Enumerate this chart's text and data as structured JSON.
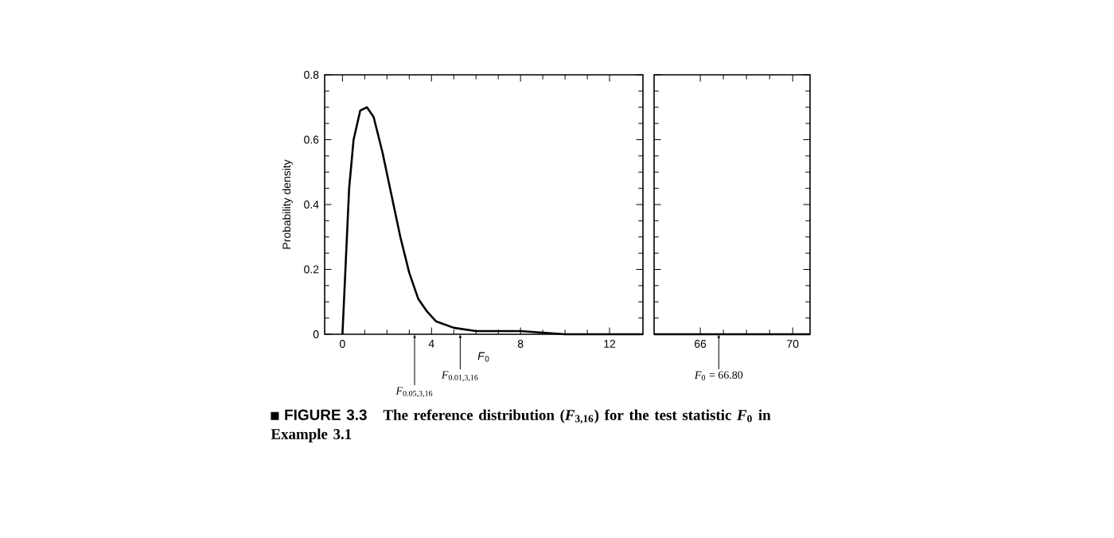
{
  "chart_data": [
    {
      "type": "line",
      "title": "FIGURE 3.3",
      "subtitle": "The reference distribution (*F*$_{3,16}$) for the test statistic *F*$_{0}$ in Example 3.1",
      "xlabel": "*F*$_{0}$",
      "ylabel": "Probability density",
      "color": "#000000",
      "x": [
        0,
        0.1,
        0.3,
        0.5,
        0.8,
        1.1,
        1.4,
        1.8,
        2.2,
        2.6,
        3.0,
        3.4,
        3.8,
        4.2,
        5,
        6,
        8,
        10,
        12,
        13.5
      ],
      "values": [
        0,
        0.15,
        0.45,
        0.6,
        0.69,
        0.7,
        0.67,
        0.56,
        0.43,
        0.3,
        0.19,
        0.11,
        0.07,
        0.04,
        0.02,
        0.01,
        0.01,
        0,
        0,
        0
      ],
      "xlim": [
        -0.8,
        13.5
      ],
      "xticks": [
        0,
        4,
        8,
        12
      ],
      "ylim": [
        0,
        0.8
      ],
      "yticks": [
        0,
        0.2,
        0.4,
        0.6,
        0.8
      ],
      "annotations": [
        {
          "text": "*F*$_{0.05,3,16}$",
          "x": 3.24,
          "y": 0
        },
        {
          "text": "*F*$_{0.01,3,16}$",
          "x": 5.29,
          "y": 0
        }
      ]
    },
    {
      "type": "line",
      "color": "#000000",
      "x": [
        64,
        70.75
      ],
      "values": [
        0,
        0
      ],
      "xlim": [
        64,
        70.75
      ],
      "xticks": [
        66,
        70
      ],
      "ylim": [
        0,
        0.8
      ],
      "yticks": [
        0,
        0.2,
        0.4,
        0.6,
        0.8
      ],
      "tick_labels": "x",
      "annotations": [
        {
          "text": "*F*$_{0}$ = 66.80",
          "x": 66.8,
          "y": 0
        }
      ]
    }
  ]
}
